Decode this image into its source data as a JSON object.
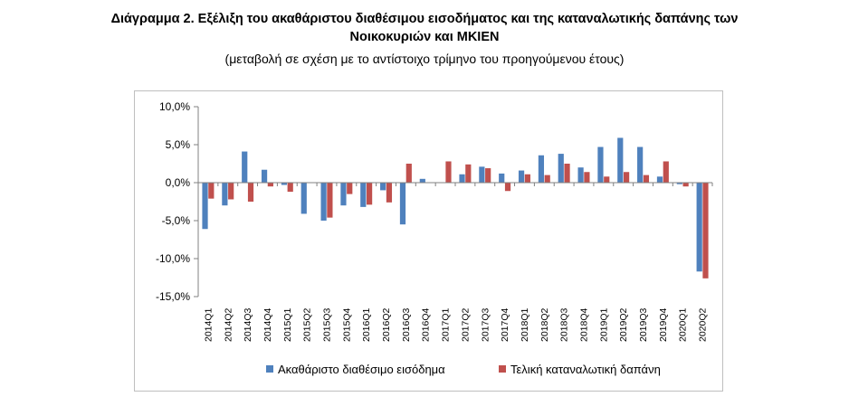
{
  "header": {
    "title_line1": "Διάγραμμα 2. Εξέλιξη του ακαθάριστου διαθέσιμου εισοδήματος και της καταναλωτικής δαπάνης των",
    "title_line2": "Νοικοκυριών και ΜΚΙΕΝ",
    "subtitle": "(μεταβολή σε σχέση με το αντίστοιχο τρίμηνο του προηγούμενου έτους)"
  },
  "chart_data": {
    "type": "bar",
    "title": "Διάγραμμα 2. Εξέλιξη του ακαθάριστου διαθέσιμου εισοδήματος και της καταναλωτικής δαπάνης των Νοικοκυριών και ΜΚΙΕΝ",
    "subtitle": "(μεταβολή σε σχέση με το αντίστοιχο τρίμηνο του προηγούμενου έτους)",
    "xlabel": "",
    "ylabel": "",
    "ylim": [
      -15,
      10
    ],
    "yticks": [
      10,
      5,
      0,
      -5,
      -10,
      -15
    ],
    "ytick_labels": [
      "10,0%",
      "5,0%",
      "0,0%",
      "-5,0%",
      "-10,0%",
      "-15,0%"
    ],
    "grid": false,
    "legend_position": "bottom",
    "categories": [
      "2014Q1",
      "2014Q2",
      "2014Q3",
      "2014Q4",
      "2015Q1",
      "2015Q2",
      "2015Q3",
      "2015Q4",
      "2016Q1",
      "2016Q2",
      "2016Q3",
      "2016Q4",
      "2017Q1",
      "2017Q2",
      "2017Q3",
      "2017Q4",
      "2018Q1",
      "2018Q2",
      "2018Q3",
      "2018Q4",
      "2019Q1",
      "2019Q2",
      "2019Q3",
      "2019Q4",
      "2020Q1",
      "2020Q2"
    ],
    "series": [
      {
        "name": "Ακαθάριστο διαθέσιμο εισόδημα",
        "color": "#4f81bd",
        "values": [
          -6.1,
          -3.0,
          4.1,
          1.7,
          -0.3,
          -4.1,
          -5.0,
          -3.0,
          -3.2,
          -1.0,
          -5.5,
          0.5,
          0.0,
          1.1,
          2.1,
          1.2,
          1.6,
          3.6,
          3.8,
          2.0,
          4.7,
          5.9,
          4.7,
          0.8,
          -0.2,
          -11.7
        ]
      },
      {
        "name": "Τελική καταναλωτική δαπάνη",
        "color": "#c0504d",
        "values": [
          -2.1,
          -2.2,
          -2.5,
          -0.5,
          -1.2,
          0.0,
          -4.6,
          -1.5,
          -2.9,
          -2.6,
          2.5,
          0.0,
          2.8,
          2.4,
          1.9,
          -1.1,
          1.1,
          1.0,
          2.5,
          1.4,
          0.8,
          1.4,
          1.0,
          2.8,
          -0.5,
          -12.6
        ]
      }
    ]
  }
}
